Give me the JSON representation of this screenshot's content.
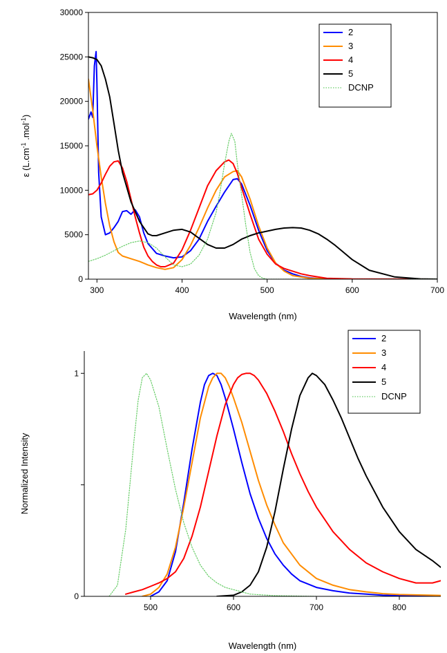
{
  "chart_data": [
    {
      "type": "line",
      "title": "",
      "xlabel": "Wavelength (nm)",
      "ylabel": "ε (L.cm-1.mol-1)",
      "ylabel_parts": {
        "main": "ε (L.cm",
        "sup1": "-1",
        "mid": " .mol",
        "sup2": "-1",
        "end": ")"
      },
      "xlim": [
        290,
        700
      ],
      "ylim": [
        0,
        30000
      ],
      "xticks": [
        300,
        400,
        500,
        600,
        700
      ],
      "yticks": [
        0,
        5000,
        10000,
        15000,
        20000,
        25000,
        30000
      ],
      "grid": false,
      "legend_position": "top-right",
      "series": [
        {
          "name": "2",
          "color": "#0000ff",
          "style": "solid",
          "x": [
            290,
            293,
            295,
            297,
            299,
            300,
            302,
            305,
            310,
            315,
            320,
            325,
            330,
            335,
            340,
            345,
            350,
            355,
            360,
            370,
            380,
            390,
            400,
            410,
            420,
            430,
            440,
            450,
            460,
            465,
            470,
            480,
            490,
            500,
            510,
            520,
            530,
            540,
            550,
            560,
            580,
            600,
            700
          ],
          "y": [
            18000,
            18800,
            18200,
            24000,
            25600,
            22000,
            12000,
            7000,
            5000,
            5200,
            5800,
            6500,
            7600,
            7700,
            7300,
            7800,
            7000,
            5200,
            4000,
            2900,
            2600,
            2400,
            2500,
            3200,
            4500,
            6500,
            8200,
            9800,
            11200,
            11300,
            10700,
            8300,
            5500,
            3200,
            1800,
            1000,
            600,
            300,
            150,
            80,
            30,
            10,
            0
          ]
        },
        {
          "name": "3",
          "color": "#ff8c00",
          "style": "solid",
          "x": [
            290,
            295,
            300,
            305,
            310,
            315,
            320,
            325,
            330,
            340,
            350,
            360,
            370,
            380,
            390,
            400,
            410,
            420,
            430,
            440,
            450,
            460,
            465,
            470,
            480,
            490,
            500,
            510,
            520,
            530,
            550,
            600,
            700
          ],
          "y": [
            22500,
            19000,
            15000,
            11500,
            8500,
            6000,
            4200,
            3000,
            2600,
            2300,
            2000,
            1600,
            1300,
            1100,
            1300,
            2200,
            3800,
            5800,
            8000,
            10000,
            11500,
            12100,
            12200,
            11500,
            9000,
            6000,
            3500,
            1800,
            900,
            400,
            100,
            10,
            0
          ]
        },
        {
          "name": "4",
          "color": "#ff0000",
          "style": "solid",
          "x": [
            290,
            295,
            300,
            305,
            310,
            315,
            320,
            325,
            330,
            335,
            340,
            345,
            350,
            355,
            360,
            365,
            370,
            375,
            380,
            390,
            400,
            410,
            420,
            430,
            440,
            450,
            455,
            460,
            465,
            470,
            480,
            490,
            500,
            510,
            520,
            530,
            540,
            550,
            570,
            600,
            700
          ],
          "y": [
            9500,
            9600,
            10000,
            10800,
            11800,
            12700,
            13200,
            13300,
            12500,
            11000,
            9000,
            7000,
            5200,
            3600,
            2600,
            2000,
            1600,
            1400,
            1400,
            1800,
            3300,
            5500,
            8000,
            10500,
            12200,
            13200,
            13400,
            13000,
            11900,
            10300,
            7300,
            4500,
            2800,
            1700,
            1200,
            900,
            600,
            400,
            100,
            20,
            0
          ]
        },
        {
          "name": "5",
          "color": "#000000",
          "style": "solid",
          "x": [
            290,
            295,
            300,
            305,
            310,
            315,
            320,
            325,
            330,
            340,
            350,
            360,
            365,
            370,
            380,
            390,
            400,
            410,
            420,
            430,
            440,
            450,
            460,
            470,
            480,
            490,
            500,
            510,
            520,
            530,
            540,
            550,
            560,
            570,
            580,
            590,
            600,
            620,
            650,
            680,
            700
          ],
          "y": [
            25000,
            24900,
            24700,
            24000,
            22500,
            20500,
            17500,
            14500,
            12000,
            8700,
            6500,
            5100,
            4900,
            4900,
            5200,
            5500,
            5600,
            5300,
            4600,
            3900,
            3500,
            3500,
            3900,
            4500,
            4900,
            5200,
            5400,
            5600,
            5750,
            5800,
            5750,
            5500,
            5100,
            4500,
            3800,
            3000,
            2200,
            1000,
            250,
            30,
            0
          ]
        },
        {
          "name": "DCNP",
          "color": "#66cc66",
          "style": "dotted",
          "x": [
            290,
            300,
            310,
            320,
            330,
            340,
            350,
            360,
            370,
            380,
            390,
            400,
            410,
            420,
            430,
            440,
            445,
            450,
            455,
            458,
            462,
            465,
            470,
            475,
            480,
            485,
            490,
            495,
            500,
            520,
            700
          ],
          "y": [
            2000,
            2300,
            2700,
            3200,
            3700,
            4100,
            4300,
            4100,
            3500,
            2500,
            1600,
            1400,
            1700,
            2700,
            4500,
            7500,
            10000,
            13000,
            15500,
            16400,
            15500,
            13000,
            9500,
            6000,
            3000,
            1200,
            400,
            100,
            0,
            0,
            0
          ]
        }
      ]
    },
    {
      "type": "line",
      "title": "",
      "xlabel": "Wavelength (nm)",
      "ylabel": "Normalized Intensity",
      "xlim": [
        420,
        850
      ],
      "ylim": [
        0,
        1.1
      ],
      "xticks": [
        500,
        600,
        700,
        800
      ],
      "yticks": [
        0,
        0.5,
        1
      ],
      "ytick_labels": [
        "0",
        "",
        "1"
      ],
      "grid": false,
      "legend_position": "top-right",
      "series": [
        {
          "name": "2",
          "color": "#0000ff",
          "style": "solid",
          "x": [
            500,
            510,
            520,
            530,
            540,
            550,
            560,
            565,
            570,
            575,
            580,
            585,
            590,
            600,
            610,
            620,
            630,
            640,
            650,
            660,
            670,
            680,
            700,
            720,
            740,
            760,
            780,
            800,
            850
          ],
          "y": [
            0,
            0.02,
            0.07,
            0.2,
            0.42,
            0.66,
            0.87,
            0.95,
            0.99,
            1.0,
            0.99,
            0.95,
            0.89,
            0.75,
            0.6,
            0.46,
            0.35,
            0.26,
            0.19,
            0.14,
            0.1,
            0.07,
            0.04,
            0.025,
            0.015,
            0.01,
            0.005,
            0.003,
            0.0
          ]
        },
        {
          "name": "3",
          "color": "#ff8c00",
          "style": "solid",
          "x": [
            490,
            500,
            510,
            520,
            530,
            540,
            550,
            560,
            570,
            575,
            580,
            585,
            590,
            595,
            600,
            610,
            620,
            630,
            640,
            650,
            660,
            680,
            700,
            720,
            740,
            760,
            780,
            800,
            850
          ],
          "y": [
            0,
            0.01,
            0.04,
            0.1,
            0.22,
            0.4,
            0.6,
            0.8,
            0.94,
            0.98,
            1.0,
            1.0,
            0.98,
            0.94,
            0.89,
            0.78,
            0.65,
            0.52,
            0.41,
            0.32,
            0.24,
            0.14,
            0.08,
            0.05,
            0.03,
            0.02,
            0.012,
            0.008,
            0.004
          ]
        },
        {
          "name": "4",
          "color": "#ff0000",
          "style": "solid",
          "x": [
            470,
            480,
            490,
            500,
            510,
            520,
            530,
            540,
            550,
            560,
            570,
            580,
            590,
            600,
            605,
            610,
            615,
            620,
            625,
            630,
            640,
            650,
            660,
            670,
            680,
            690,
            700,
            720,
            740,
            760,
            780,
            800,
            820,
            840,
            850
          ],
          "y": [
            0.01,
            0.02,
            0.03,
            0.045,
            0.06,
            0.08,
            0.11,
            0.17,
            0.27,
            0.4,
            0.56,
            0.72,
            0.86,
            0.95,
            0.98,
            0.995,
            1.0,
            1.0,
            0.99,
            0.97,
            0.91,
            0.83,
            0.74,
            0.64,
            0.55,
            0.47,
            0.4,
            0.29,
            0.21,
            0.15,
            0.11,
            0.08,
            0.06,
            0.06,
            0.07
          ]
        },
        {
          "name": "5",
          "color": "#000000",
          "style": "solid",
          "x": [
            580,
            600,
            610,
            620,
            630,
            640,
            650,
            660,
            670,
            680,
            690,
            695,
            700,
            710,
            720,
            730,
            740,
            750,
            760,
            780,
            800,
            820,
            840,
            850
          ],
          "y": [
            0,
            0.005,
            0.02,
            0.05,
            0.11,
            0.22,
            0.38,
            0.57,
            0.75,
            0.9,
            0.98,
            1.0,
            0.99,
            0.95,
            0.88,
            0.8,
            0.71,
            0.62,
            0.54,
            0.4,
            0.29,
            0.21,
            0.16,
            0.13
          ]
        },
        {
          "name": "DCNP",
          "color": "#66cc66",
          "style": "dotted",
          "x": [
            450,
            460,
            470,
            480,
            485,
            490,
            495,
            500,
            510,
            520,
            530,
            540,
            550,
            560,
            570,
            580,
            590,
            600,
            620,
            650,
            700
          ],
          "y": [
            0,
            0.05,
            0.3,
            0.7,
            0.88,
            0.98,
            1.0,
            0.97,
            0.85,
            0.66,
            0.48,
            0.33,
            0.22,
            0.14,
            0.09,
            0.06,
            0.04,
            0.03,
            0.01,
            0.003,
            0
          ]
        }
      ]
    }
  ]
}
